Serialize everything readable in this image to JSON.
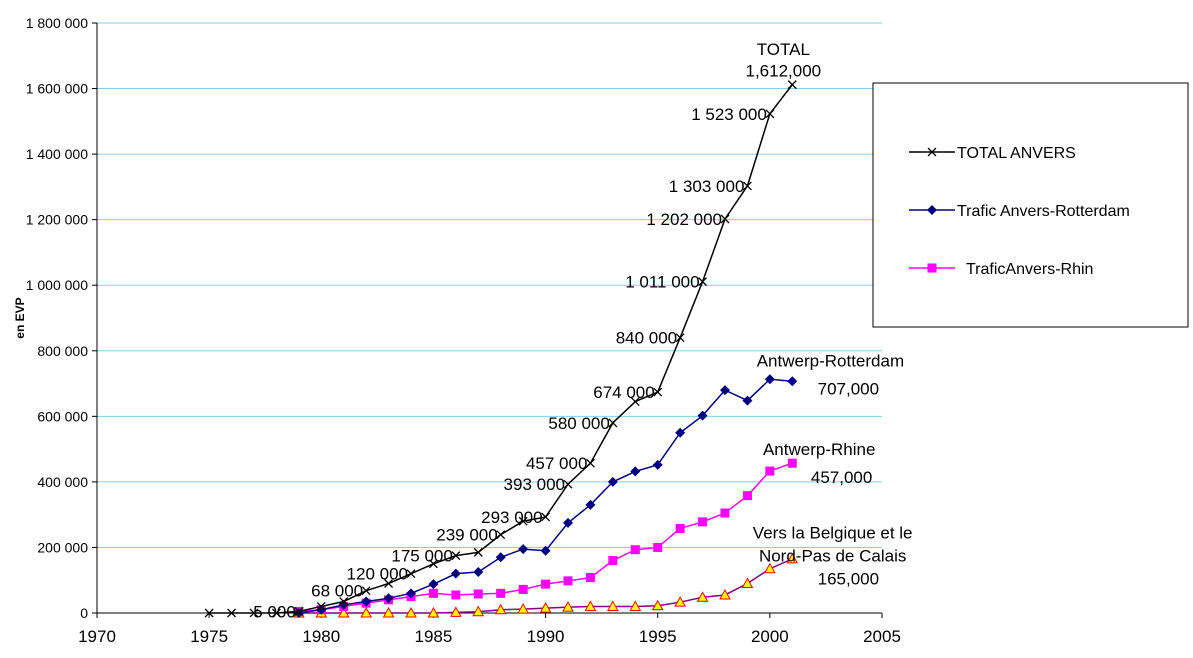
{
  "chart_data": {
    "type": "line",
    "title": "",
    "xlabel": "",
    "ylabel": "en EVP",
    "xlim": [
      1970,
      2005
    ],
    "ylim": [
      0,
      1800000
    ],
    "x_ticks": [
      "1970",
      "1975",
      "1980",
      "1985",
      "1990",
      "1995",
      "2000",
      "2005"
    ],
    "y_ticks": [
      "0",
      "200 000",
      "400 000",
      "600 000",
      "800 000",
      "1 000 000",
      "1 200 000",
      "1 400 000",
      "1 600 000",
      "1 800 000"
    ],
    "grid": "horizontal",
    "legend_position": "right",
    "series": [
      {
        "name": "TOTAL ANVERS",
        "color": "#000000",
        "marker": "x",
        "x": [
          1975,
          1976,
          1977,
          1978,
          1979,
          1980,
          1981,
          1982,
          1983,
          1984,
          1985,
          1986,
          1987,
          1988,
          1989,
          1990,
          1991,
          1992,
          1993,
          1994,
          1995,
          1996,
          1997,
          1998,
          1999,
          2000,
          2001
        ],
        "y": [
          0,
          0,
          0,
          0,
          5000,
          20000,
          35000,
          68000,
          90000,
          120000,
          150000,
          175000,
          185000,
          239000,
          280000,
          293000,
          393000,
          457000,
          580000,
          645000,
          674000,
          840000,
          1011000,
          1202000,
          1303000,
          1523000,
          1612000
        ]
      },
      {
        "name": "Trafic Anvers-Rotterdam",
        "color": "#000080",
        "marker": "diamond",
        "x": [
          1979,
          1980,
          1981,
          1982,
          1983,
          1984,
          1985,
          1986,
          1987,
          1988,
          1989,
          1990,
          1991,
          1992,
          1993,
          1994,
          1995,
          1996,
          1997,
          1998,
          1999,
          2000,
          2001
        ],
        "y": [
          0,
          10000,
          25000,
          35000,
          45000,
          60000,
          88000,
          120000,
          125000,
          170000,
          195000,
          190000,
          275000,
          330000,
          400000,
          432000,
          452000,
          550000,
          602000,
          680000,
          648000,
          713000,
          707000
        ]
      },
      {
        "name": "TraficAnvers-Rhin",
        "color": "#ff00ff",
        "marker": "square",
        "x": [
          1979,
          1980,
          1981,
          1982,
          1983,
          1984,
          1985,
          1986,
          1987,
          1988,
          1989,
          1990,
          1991,
          1992,
          1993,
          1994,
          1995,
          1996,
          1997,
          1998,
          1999,
          2000,
          2001
        ],
        "y": [
          5000,
          10000,
          20000,
          30000,
          40000,
          50000,
          60000,
          55000,
          58000,
          60000,
          72000,
          88000,
          98000,
          108000,
          160000,
          193000,
          200000,
          258000,
          278000,
          305000,
          358000,
          433000,
          457000
        ]
      },
      {
        "name": "",
        "color": "#800080",
        "marker": "triangle",
        "marker_fill": "#ffff00",
        "marker_stroke": "#ff0000",
        "x": [
          1979,
          1980,
          1981,
          1982,
          1983,
          1984,
          1985,
          1986,
          1987,
          1988,
          1989,
          1990,
          1991,
          1992,
          1993,
          1994,
          1995,
          1996,
          1997,
          1998,
          1999,
          2000,
          2001
        ],
        "y": [
          0,
          0,
          0,
          0,
          0,
          0,
          0,
          2000,
          4000,
          10000,
          12000,
          15000,
          18000,
          20000,
          20000,
          20000,
          22000,
          33000,
          48000,
          55000,
          90000,
          135000,
          165000
        ]
      }
    ],
    "annotations": [
      {
        "text": "5 000",
        "at": [
          1979,
          5000
        ],
        "anchor": "end"
      },
      {
        "text": "68 000",
        "at": [
          1982,
          68000
        ],
        "anchor": "end"
      },
      {
        "text": "120 000",
        "at": [
          1984,
          120000
        ],
        "anchor": "end"
      },
      {
        "text": "175 000",
        "at": [
          1986,
          175000
        ],
        "anchor": "end"
      },
      {
        "text": "239 000",
        "at": [
          1988,
          239000
        ],
        "anchor": "end"
      },
      {
        "text": "293 000",
        "at": [
          1990,
          293000
        ],
        "anchor": "end"
      },
      {
        "text": "393 000",
        "at": [
          1991,
          393000
        ],
        "anchor": "end"
      },
      {
        "text": "457 000",
        "at": [
          1992,
          457000
        ],
        "anchor": "end"
      },
      {
        "text": "580 000",
        "at": [
          1993,
          580000
        ],
        "anchor": "end"
      },
      {
        "text": "674 000",
        "at": [
          1995,
          674000
        ],
        "anchor": "end"
      },
      {
        "text": "840 000",
        "at": [
          1996,
          840000
        ],
        "anchor": "end"
      },
      {
        "text": "1 011 000",
        "at": [
          1997,
          1011000
        ],
        "anchor": "end"
      },
      {
        "text": "1 202 000",
        "at": [
          1998,
          1202000
        ],
        "anchor": "end"
      },
      {
        "text": "1 303 000",
        "at": [
          1999,
          1303000
        ],
        "anchor": "end"
      },
      {
        "text": "1 523 000",
        "at": [
          2000,
          1523000
        ],
        "anchor": "end"
      },
      {
        "text": "TOTAL",
        "at": [
          2000.6,
          1720000
        ],
        "anchor": "middle"
      },
      {
        "text": "1,612,000",
        "at": [
          2000.6,
          1655000
        ],
        "anchor": "middle"
      },
      {
        "text": "Antwerp-Rotterdam",
        "at": [
          2002.7,
          770000
        ],
        "anchor": "middle"
      },
      {
        "text": "707,000",
        "at": [
          2003.5,
          685000
        ],
        "anchor": "middle"
      },
      {
        "text": "Antwerp-Rhine",
        "at": [
          2002.2,
          500000
        ],
        "anchor": "middle"
      },
      {
        "text": "457,000",
        "at": [
          2003.2,
          415000
        ],
        "anchor": "middle"
      },
      {
        "text": "Vers la Belgique et le",
        "at": [
          2002.8,
          245000
        ],
        "anchor": "middle"
      },
      {
        "text": "Nord-Pas de Calais",
        "at": [
          2002.8,
          175000
        ],
        "anchor": "middle"
      },
      {
        "text": "165,000",
        "at": [
          2003.5,
          105000
        ],
        "anchor": "middle"
      }
    ]
  }
}
